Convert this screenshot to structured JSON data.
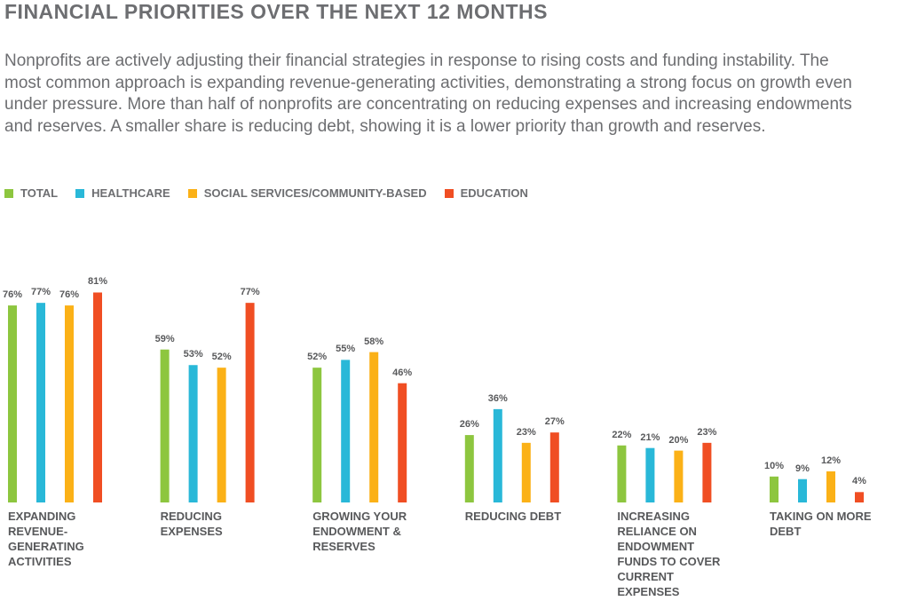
{
  "chart_data": {
    "type": "bar",
    "title": "FINANCIAL PRIORITIES OVER THE NEXT 12 MONTHS",
    "subtitle": "Nonprofits are actively adjusting their financial strategies in response to rising costs and funding instability. The most common approach is expanding revenue-generating activities, demonstrating a strong focus on growth even under pressure. More than half of nonprofits are concentrating on reducing expenses and increasing endowments and reserves. A smaller share is reducing debt, showing it is a lower priority than growth and reserves.",
    "categories": [
      "EXPANDING REVENUE-GENERATING ACTIVITIES",
      "REDUCING EXPENSES",
      "GROWING YOUR ENDOWMENT & RESERVES",
      "REDUCING DEBT",
      "INCREASING RELIANCE ON ENDOWMENT FUNDS TO COVER CURRENT EXPENSES",
      "TAKING ON MORE DEBT"
    ],
    "series": [
      {
        "name": "TOTAL",
        "color": "#8dc63f",
        "values": [
          76,
          59,
          52,
          26,
          22,
          10
        ],
        "value_labels": [
          "76%",
          "59%",
          "52%",
          "26%",
          "22%",
          "10%"
        ]
      },
      {
        "name": "HEALTHCARE",
        "color": "#29b8d8",
        "values": [
          77,
          53,
          55,
          36,
          21,
          9
        ],
        "value_labels": [
          "77%",
          "53%",
          "55%",
          "36%",
          "21%",
          "9%"
        ]
      },
      {
        "name": "SOCIAL SERVICES/COMMUNITY-BASED",
        "color": "#fbb117",
        "values": [
          76,
          52,
          58,
          23,
          20,
          12
        ],
        "value_labels": [
          "76%",
          "52%",
          "58%",
          "23%",
          "20%",
          "12%"
        ]
      },
      {
        "name": "EDUCATION",
        "color": "#f04e23",
        "values": [
          81,
          77,
          46,
          27,
          23,
          4
        ],
        "value_labels": [
          "81%",
          "77%",
          "46%",
          "27%",
          "23%",
          "4%"
        ]
      }
    ],
    "ylim": [
      0,
      100
    ]
  }
}
